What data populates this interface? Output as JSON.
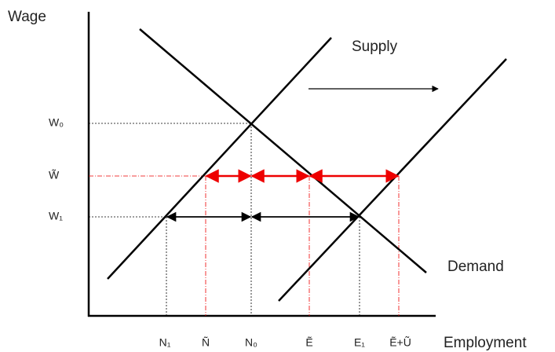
{
  "axes": {
    "y_label": "Wage",
    "x_label": "Employment"
  },
  "curves": {
    "supply": "Supply",
    "demand": "Demand"
  },
  "y_ticks": [
    "W₀",
    "W̃",
    "W₁"
  ],
  "x_ticks": [
    "N₁",
    "Ñ",
    "N₀",
    "Ẽ",
    "E₁",
    "Ẽ+Ũ"
  ]
}
